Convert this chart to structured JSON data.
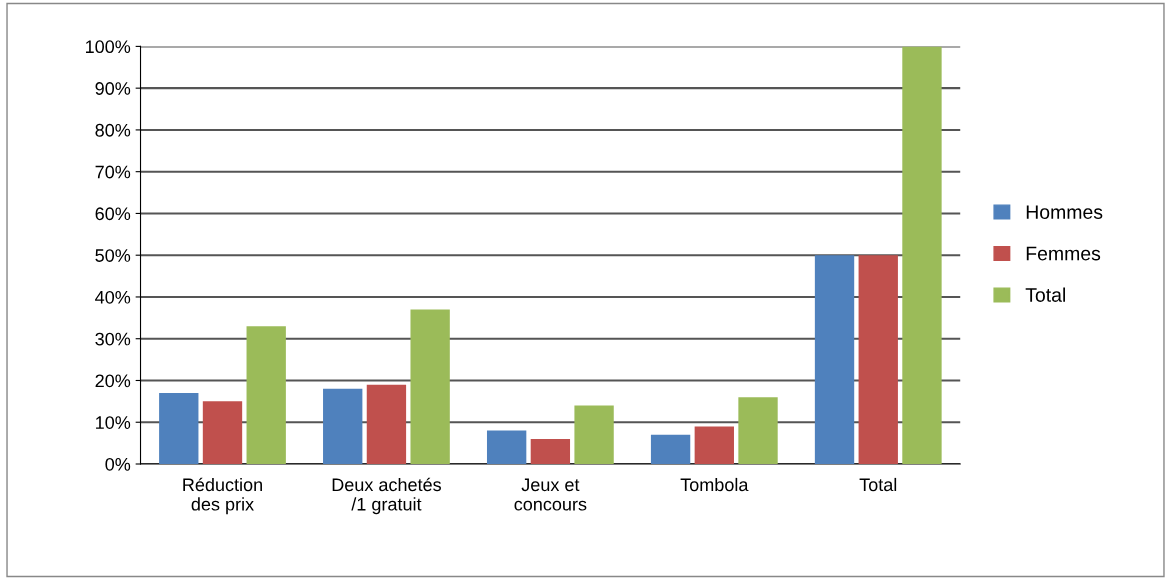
{
  "chart_data": {
    "type": "bar",
    "categories": [
      "Réduction\ndes prix",
      "Deux achetés\n/1 gratuit",
      "Jeux et\nconcours",
      "Tombola",
      "Total"
    ],
    "series": [
      {
        "name": "Hommes",
        "color": "#4f81bd",
        "values": [
          17,
          18,
          8,
          7,
          50
        ]
      },
      {
        "name": "Femmes",
        "color": "#c0504d",
        "values": [
          15,
          19,
          6,
          9,
          50
        ]
      },
      {
        "name": "Total",
        "color": "#9bbb59",
        "values": [
          33,
          37,
          14,
          16,
          100
        ]
      }
    ],
    "ylim": [
      0,
      100
    ],
    "yticks": [
      {
        "value": 0,
        "label": "0%"
      },
      {
        "value": 10,
        "label": "10%"
      },
      {
        "value": 20,
        "label": "20%"
      },
      {
        "value": 30,
        "label": "30%"
      },
      {
        "value": 40,
        "label": "40%"
      },
      {
        "value": 50,
        "label": "50%"
      },
      {
        "value": 60,
        "label": "60%"
      },
      {
        "value": 70,
        "label": "70%"
      },
      {
        "value": 80,
        "label": "80%"
      },
      {
        "value": 90,
        "label": "90%"
      },
      {
        "value": 100,
        "label": "100%"
      }
    ],
    "grid": "y",
    "legend": "right"
  }
}
